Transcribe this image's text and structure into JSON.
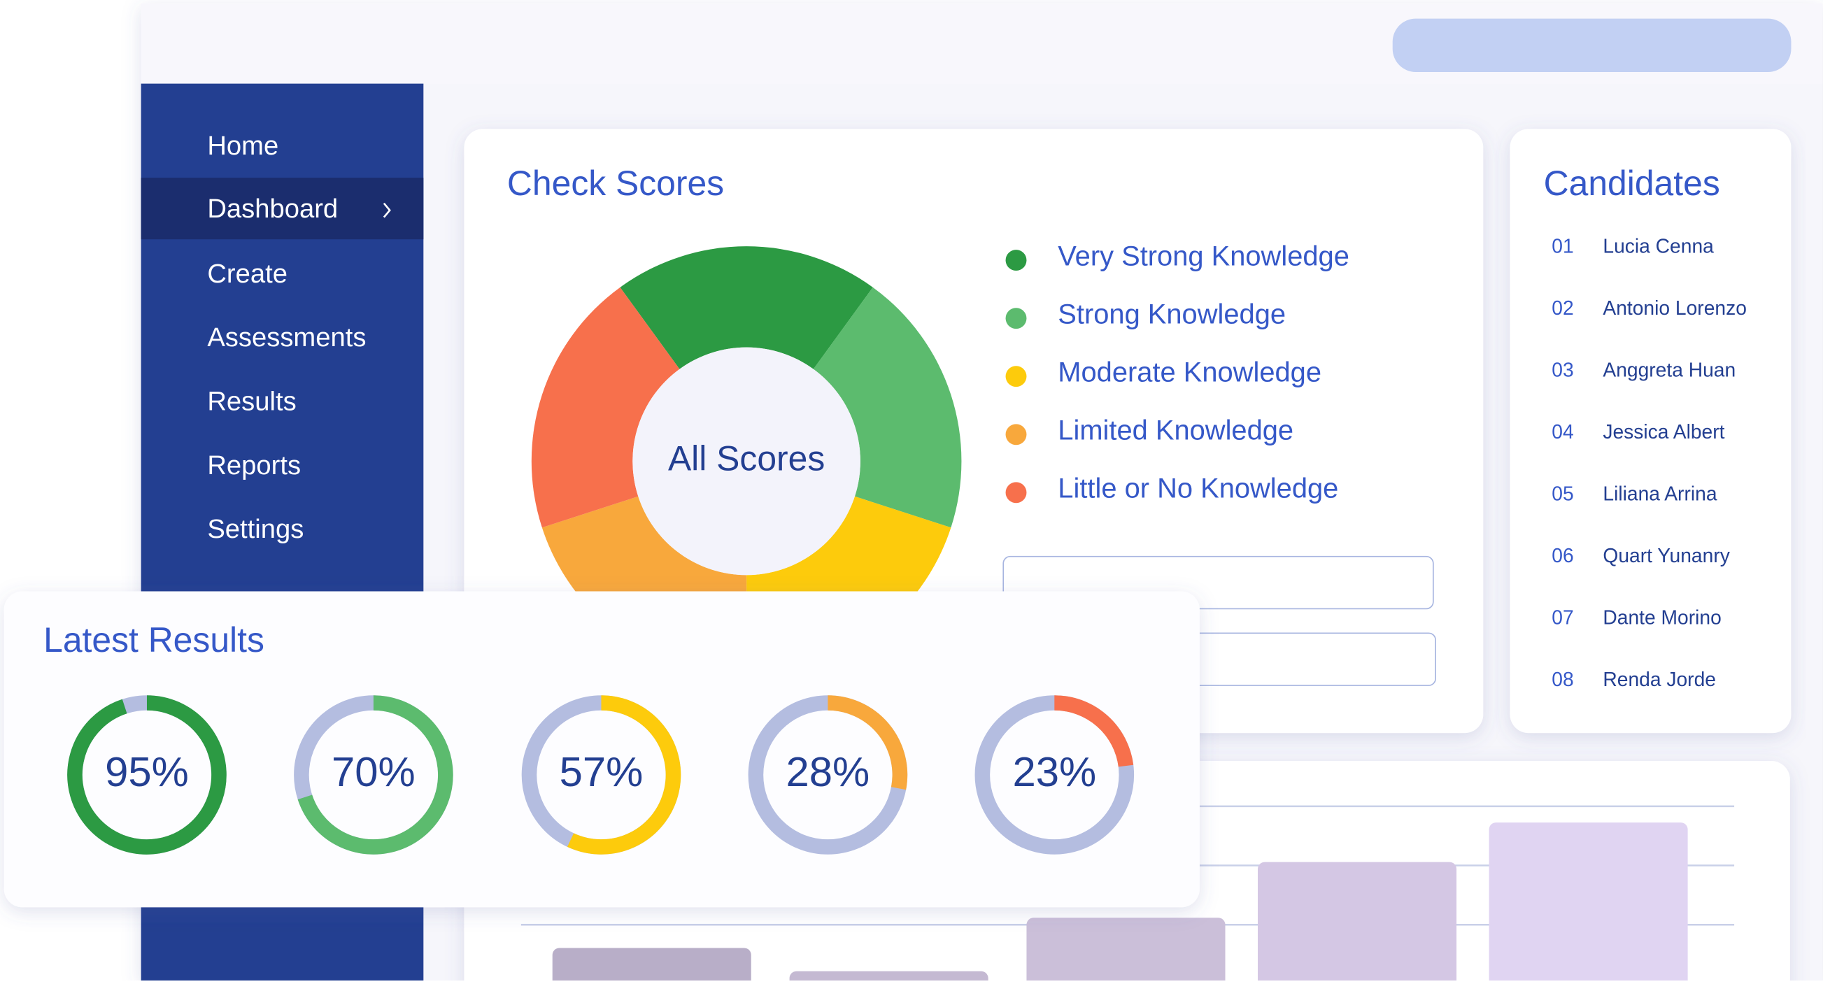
{
  "nav": {
    "items": [
      "Home",
      "Dashboard",
      "Create",
      "Assessments",
      "Results",
      "Reports",
      "Settings"
    ]
  },
  "check_scores": {
    "title": "Check Scores",
    "center_label": "All Scores",
    "legend": [
      {
        "label": "Very Strong Knowledge",
        "color": "#2c9a43",
        "share": 20
      },
      {
        "label": "Strong Knowledge",
        "color": "#5cbb6e",
        "share": 20
      },
      {
        "label": "Moderate Knowledge",
        "color": "#fdcb0c",
        "share": 20
      },
      {
        "label": "Limited Knowledge",
        "color": "#f8a83c",
        "share": 20
      },
      {
        "label": "Little or No Knowledge",
        "color": "#f7704c",
        "share": 20
      }
    ]
  },
  "candidates": {
    "title": "Candidates",
    "items": [
      {
        "number": "01",
        "name": "Lucia Cenna"
      },
      {
        "number": "02",
        "name": "Antonio Lorenzo"
      },
      {
        "number": "03",
        "name": "Anggreta Huan"
      },
      {
        "number": "04",
        "name": "Jessica Albert"
      },
      {
        "number": "05",
        "name": "Liliana Arrina"
      },
      {
        "number": "06",
        "name": "Quart Yunanry"
      },
      {
        "number": "07",
        "name": "Dante Morino"
      },
      {
        "number": "08",
        "name": "Renda Jorde"
      }
    ]
  },
  "latest_results": {
    "title": "Latest Results",
    "values": [
      95,
      70,
      57,
      28,
      23
    ],
    "value_labels": [
      "95%",
      "70%",
      "57%",
      "28%",
      "23%"
    ],
    "colors": [
      "#2c9a43",
      "#5cbb6e",
      "#fdcb0c",
      "#f8a83c",
      "#f7704c"
    ]
  }
}
